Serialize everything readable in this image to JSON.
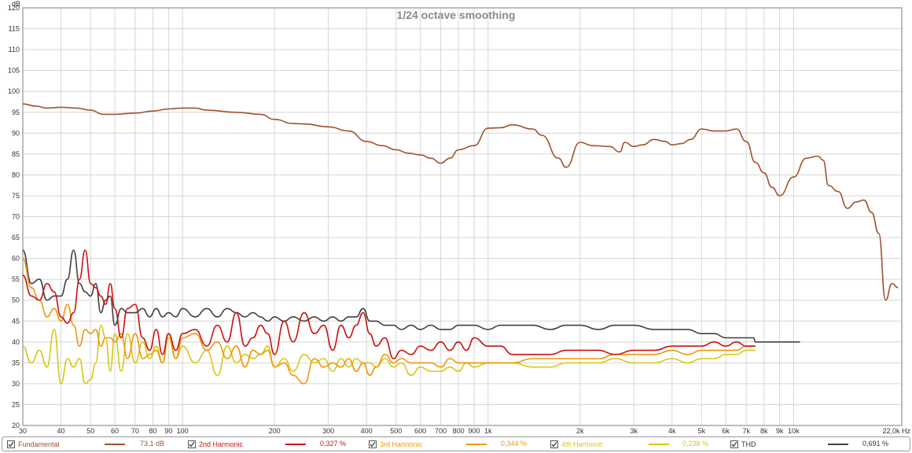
{
  "chart_data": {
    "type": "line",
    "title": "1/24 octave smoothing",
    "xlabel": "Hz",
    "ylabel": "dB",
    "xscale": "log",
    "xlim": [
      30,
      22000
    ],
    "ylim": [
      20,
      120
    ],
    "grid": true,
    "legend_position": "bottom",
    "y_ticks": [
      20,
      25,
      30,
      35,
      40,
      45,
      50,
      55,
      60,
      65,
      70,
      75,
      80,
      85,
      90,
      95,
      100,
      105,
      110,
      115,
      120
    ],
    "x_ticks": [
      {
        "v": 30,
        "label": "30"
      },
      {
        "v": 40,
        "label": "40"
      },
      {
        "v": 50,
        "label": "50"
      },
      {
        "v": 60,
        "label": "60"
      },
      {
        "v": 70,
        "label": "70"
      },
      {
        "v": 80,
        "label": "80"
      },
      {
        "v": 90,
        "label": "90"
      },
      {
        "v": 100,
        "label": "100"
      },
      {
        "v": 200,
        "label": "200"
      },
      {
        "v": 300,
        "label": "300"
      },
      {
        "v": 400,
        "label": "400"
      },
      {
        "v": 500,
        "label": "500"
      },
      {
        "v": 600,
        "label": "600"
      },
      {
        "v": 700,
        "label": "700"
      },
      {
        "v": 800,
        "label": "800"
      },
      {
        "v": 900,
        "label": "900"
      },
      {
        "v": 1000,
        "label": "1k"
      },
      {
        "v": 2000,
        "label": "2k"
      },
      {
        "v": 3000,
        "label": "3k"
      },
      {
        "v": 4000,
        "label": "4k"
      },
      {
        "v": 5000,
        "label": "5k"
      },
      {
        "v": 6000,
        "label": "6k"
      },
      {
        "v": 7000,
        "label": "7k"
      },
      {
        "v": 8000,
        "label": "8k"
      },
      {
        "v": 9000,
        "label": "9k"
      },
      {
        "v": 10000,
        "label": "10k"
      },
      {
        "v": 22000,
        "label": "22,0k Hz"
      }
    ],
    "series": [
      {
        "name": "Fundamental",
        "color": "#a0522d",
        "value": "73,1 dB",
        "x": [
          30,
          33,
          36,
          40,
          45,
          50,
          55,
          60,
          70,
          80,
          90,
          100,
          110,
          120,
          150,
          180,
          200,
          230,
          250,
          300,
          350,
          400,
          450,
          500,
          550,
          600,
          650,
          700,
          750,
          800,
          900,
          1000,
          1100,
          1200,
          1400,
          1500,
          1700,
          1800,
          2000,
          2200,
          2500,
          2700,
          2800,
          3000,
          3200,
          3500,
          3800,
          4000,
          4300,
          4600,
          5000,
          5500,
          6000,
          6500,
          7000,
          7500,
          8000,
          8500,
          9000,
          10000,
          11000,
          12000,
          12500,
          13000,
          14000,
          15000,
          16000,
          17000,
          18000,
          19000,
          20000,
          21000,
          22000
        ],
        "y": [
          97,
          96.5,
          96,
          96.2,
          96,
          95.5,
          94.5,
          94.5,
          94.8,
          95.3,
          95.8,
          96,
          96,
          95.5,
          95,
          94.5,
          93.3,
          92.3,
          92.2,
          91.5,
          90.5,
          88,
          87,
          86,
          85.2,
          84.8,
          84,
          82.8,
          84,
          86,
          87,
          91.2,
          91.3,
          92,
          91,
          89.5,
          84,
          81.8,
          87.8,
          87,
          86.8,
          85.5,
          87.8,
          86.8,
          87.2,
          88.5,
          88,
          87.2,
          87.5,
          88.5,
          91,
          90.5,
          90.5,
          91,
          88,
          83,
          80.5,
          77,
          75,
          79.5,
          84,
          84.5,
          83.5,
          77.5,
          76,
          72,
          73.5,
          74,
          71,
          66,
          50,
          54,
          53
        ]
      },
      {
        "name": "2nd Harmonic",
        "color": "#cc1111",
        "value": "0,327 %",
        "x": [
          30,
          32,
          34,
          36,
          38,
          40,
          42,
          44,
          46,
          48,
          50,
          52,
          54,
          56,
          58,
          60,
          63,
          66,
          70,
          74,
          78,
          82,
          86,
          90,
          95,
          100,
          110,
          120,
          130,
          140,
          150,
          160,
          170,
          180,
          190,
          200,
          215,
          230,
          250,
          270,
          290,
          310,
          330,
          350,
          370,
          390,
          410,
          430,
          460,
          490,
          520,
          560,
          600,
          650,
          700,
          750,
          800,
          850,
          900,
          1000,
          1100,
          1200,
          1400,
          1600,
          1800,
          2000,
          2300,
          2600,
          3000,
          3500,
          4000,
          4500,
          5000,
          5500,
          6000,
          6500,
          7000,
          7500
        ],
        "y": [
          56,
          51,
          50,
          54,
          52,
          46,
          44.5,
          47,
          55,
          62,
          54,
          53,
          51,
          49,
          54,
          48,
          41,
          48,
          49,
          41,
          38,
          43,
          37,
          42,
          38,
          42,
          43,
          39,
          44,
          40,
          47,
          39,
          41,
          44,
          42,
          37,
          45,
          40,
          47,
          42,
          44,
          38,
          44,
          41,
          44,
          47,
          42,
          39,
          41,
          36,
          38,
          37,
          39,
          38,
          40,
          38,
          40,
          38,
          41,
          39,
          39,
          37,
          37,
          37,
          38,
          38,
          38,
          37,
          38,
          38,
          39,
          39,
          39,
          40,
          39,
          40,
          39,
          39
        ]
      },
      {
        "name": "3rd Harmonic",
        "color": "#f0960a",
        "value": "0,344 %",
        "x": [
          30,
          32,
          34,
          36,
          38,
          40,
          42,
          44,
          46,
          48,
          50,
          52,
          54,
          56,
          58,
          60,
          63,
          66,
          70,
          74,
          78,
          82,
          86,
          90,
          95,
          100,
          110,
          120,
          130,
          140,
          150,
          160,
          170,
          180,
          190,
          200,
          215,
          230,
          250,
          270,
          290,
          310,
          330,
          350,
          370,
          390,
          410,
          430,
          460,
          490,
          520,
          560,
          600,
          650,
          700,
          750,
          800,
          850,
          900,
          1000,
          1100,
          1200,
          1400,
          1600,
          1800,
          2000,
          2300,
          2600,
          3000,
          3500,
          4000,
          4500,
          5000,
          5500,
          6000,
          6500,
          7000,
          7500
        ],
        "y": [
          60,
          53,
          50,
          46,
          48,
          45,
          49,
          44,
          39,
          43,
          42,
          43,
          39,
          41,
          41,
          40,
          42,
          36,
          42,
          36,
          37,
          38,
          35,
          42,
          36,
          41,
          42,
          38,
          40,
          36,
          39,
          34,
          38,
          37,
          38,
          34,
          35,
          32,
          30,
          36,
          34,
          35,
          34,
          36,
          33,
          35,
          32,
          34,
          37,
          35,
          36,
          35,
          35,
          35,
          34,
          36,
          35,
          35,
          35,
          35,
          35,
          35,
          36,
          36,
          36,
          36,
          36,
          37,
          37,
          37,
          38,
          37,
          38,
          38,
          38,
          38,
          39,
          39
        ]
      },
      {
        "name": "4th Harmonic",
        "color": "#d4c814",
        "value": "0,238 %",
        "x": [
          30,
          32,
          34,
          36,
          38,
          40,
          42,
          44,
          46,
          48,
          50,
          52,
          54,
          56,
          58,
          60,
          63,
          66,
          70,
          74,
          78,
          82,
          86,
          90,
          95,
          100,
          110,
          120,
          130,
          140,
          150,
          160,
          170,
          180,
          190,
          200,
          215,
          230,
          250,
          270,
          290,
          310,
          330,
          350,
          370,
          390,
          410,
          430,
          460,
          490,
          520,
          560,
          600,
          650,
          700,
          750,
          800,
          850,
          900,
          1000,
          1100,
          1200,
          1400,
          1600,
          1800,
          2000,
          2300,
          2600,
          3000,
          3500,
          4000,
          4500,
          5000,
          5500,
          6000,
          6500,
          7000,
          7500
        ],
        "y": [
          39,
          35,
          38,
          34,
          43,
          30,
          36,
          34,
          36,
          30,
          31,
          35,
          44,
          41,
          33,
          42,
          33,
          42,
          35,
          40,
          36,
          39,
          35,
          41,
          36,
          39,
          35,
          38,
          32,
          39,
          35,
          37,
          36,
          37,
          39,
          34,
          36,
          33,
          37,
          35,
          36,
          33,
          36,
          34,
          36,
          35,
          35,
          34,
          36,
          34,
          35,
          32,
          34,
          33,
          33,
          34,
          33,
          35,
          34,
          35,
          35,
          35,
          34,
          34,
          35,
          35,
          35,
          36,
          35,
          35,
          36,
          35,
          36,
          36,
          37,
          37,
          38,
          38
        ]
      },
      {
        "name": "THD",
        "color": "#404040",
        "value": "0,691 %",
        "x": [
          30,
          32,
          34,
          36,
          38,
          40,
          42,
          44,
          46,
          48,
          50,
          52,
          54,
          56,
          58,
          60,
          63,
          66,
          70,
          74,
          78,
          82,
          86,
          90,
          95,
          100,
          110,
          120,
          130,
          140,
          150,
          160,
          170,
          180,
          190,
          200,
          215,
          230,
          250,
          270,
          290,
          310,
          330,
          350,
          370,
          390,
          410,
          430,
          460,
          490,
          520,
          560,
          600,
          650,
          700,
          750,
          800,
          850,
          900,
          1000,
          1100,
          1200,
          1400,
          1600,
          1800,
          2000,
          2300,
          2600,
          3000,
          3500,
          4000,
          4500,
          5000,
          5500,
          6000,
          6500,
          7000,
          7400,
          7500,
          8000,
          8500,
          9000,
          9500,
          10000,
          10500
        ],
        "y": [
          62,
          54,
          55,
          50,
          51,
          51,
          55,
          62,
          54,
          52,
          51,
          54,
          47,
          50,
          51,
          44,
          48,
          47,
          47,
          48,
          46,
          48,
          46,
          47,
          46,
          48,
          46,
          48,
          46,
          48,
          47,
          46,
          47,
          46,
          45,
          46,
          45,
          46,
          45,
          46,
          45,
          46,
          45,
          46,
          46,
          48,
          45,
          45,
          44,
          44,
          43,
          44,
          43,
          44,
          43,
          43,
          44,
          44,
          44,
          43,
          44,
          44,
          44,
          43,
          44,
          44,
          43,
          44,
          44,
          43,
          43,
          43,
          42,
          42,
          41,
          41,
          41,
          41,
          40,
          40,
          40,
          40,
          40,
          40,
          40
        ]
      }
    ]
  },
  "legend": {
    "items": [
      {
        "label": "Fundamental",
        "value": "73,1 dB",
        "color": "#a0522d"
      },
      {
        "label": "2nd Harmonic",
        "value": "0,327 %",
        "color": "#cc1111"
      },
      {
        "label": "3rd Harmonic",
        "value": "0,344 %",
        "color": "#f0960a"
      },
      {
        "label": "4th Harmonic",
        "value": "0,238 %",
        "color": "#d4c814"
      },
      {
        "label": "THD",
        "value": "0,691 %",
        "color": "#404040"
      }
    ]
  }
}
